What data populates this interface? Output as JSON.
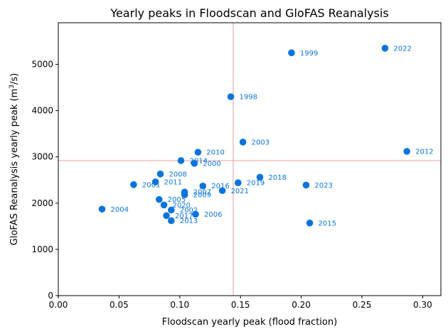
{
  "chart_data": {
    "type": "scatter",
    "title": "Yearly peaks in Floodscan and GloFAS Reanalysis",
    "xlabel": "Floodscan yearly peak (flood fraction)",
    "ylabel": "GloFAS Reanalysis yearly peak (m³/s)",
    "xlim": [
      0.0,
      0.315
    ],
    "ylim": [
      0,
      5900
    ],
    "xticks": [
      0.0,
      0.05,
      0.1,
      0.15,
      0.2,
      0.25,
      0.3
    ],
    "xtick_labels": [
      "0.00",
      "0.05",
      "0.10",
      "0.15",
      "0.20",
      "0.25",
      "0.30"
    ],
    "yticks": [
      0,
      1000,
      2000,
      3000,
      4000,
      5000
    ],
    "ytick_labels": [
      "0",
      "1000",
      "2000",
      "3000",
      "4000",
      "5000"
    ],
    "grid": false,
    "point_color": "#0a74da",
    "label_color": "#0a74da",
    "reference_line_color": "#e6a0a0",
    "reference_lines": {
      "x": 0.144,
      "y": 2920
    },
    "points": [
      {
        "label": "1998",
        "x": 0.142,
        "y": 4300
      },
      {
        "label": "1999",
        "x": 0.192,
        "y": 5250
      },
      {
        "label": "2000",
        "x": 0.112,
        "y": 2860
      },
      {
        "label": "2001",
        "x": 0.062,
        "y": 2400
      },
      {
        "label": "2002",
        "x": 0.093,
        "y": 1850
      },
      {
        "label": "2003",
        "x": 0.152,
        "y": 3320
      },
      {
        "label": "2004",
        "x": 0.036,
        "y": 1870
      },
      {
        "label": "2005",
        "x": 0.083,
        "y": 2080
      },
      {
        "label": "2006",
        "x": 0.113,
        "y": 1760
      },
      {
        "label": "2007",
        "x": 0.104,
        "y": 2240
      },
      {
        "label": "2008",
        "x": 0.084,
        "y": 2630
      },
      {
        "label": "2009",
        "x": 0.104,
        "y": 2180
      },
      {
        "label": "2010",
        "x": 0.115,
        "y": 3100
      },
      {
        "label": "2011",
        "x": 0.08,
        "y": 2460
      },
      {
        "label": "2012",
        "x": 0.287,
        "y": 3120
      },
      {
        "label": "2013",
        "x": 0.093,
        "y": 1620
      },
      {
        "label": "2014",
        "x": 0.101,
        "y": 2920
      },
      {
        "label": "2015",
        "x": 0.207,
        "y": 1570
      },
      {
        "label": "2016",
        "x": 0.119,
        "y": 2370
      },
      {
        "label": "2017",
        "x": 0.089,
        "y": 1730
      },
      {
        "label": "2018",
        "x": 0.166,
        "y": 2560
      },
      {
        "label": "2019",
        "x": 0.148,
        "y": 2440
      },
      {
        "label": "2020",
        "x": 0.087,
        "y": 1960
      },
      {
        "label": "2021",
        "x": 0.135,
        "y": 2270
      },
      {
        "label": "2022",
        "x": 0.269,
        "y": 5350
      },
      {
        "label": "2023",
        "x": 0.204,
        "y": 2390
      }
    ]
  }
}
